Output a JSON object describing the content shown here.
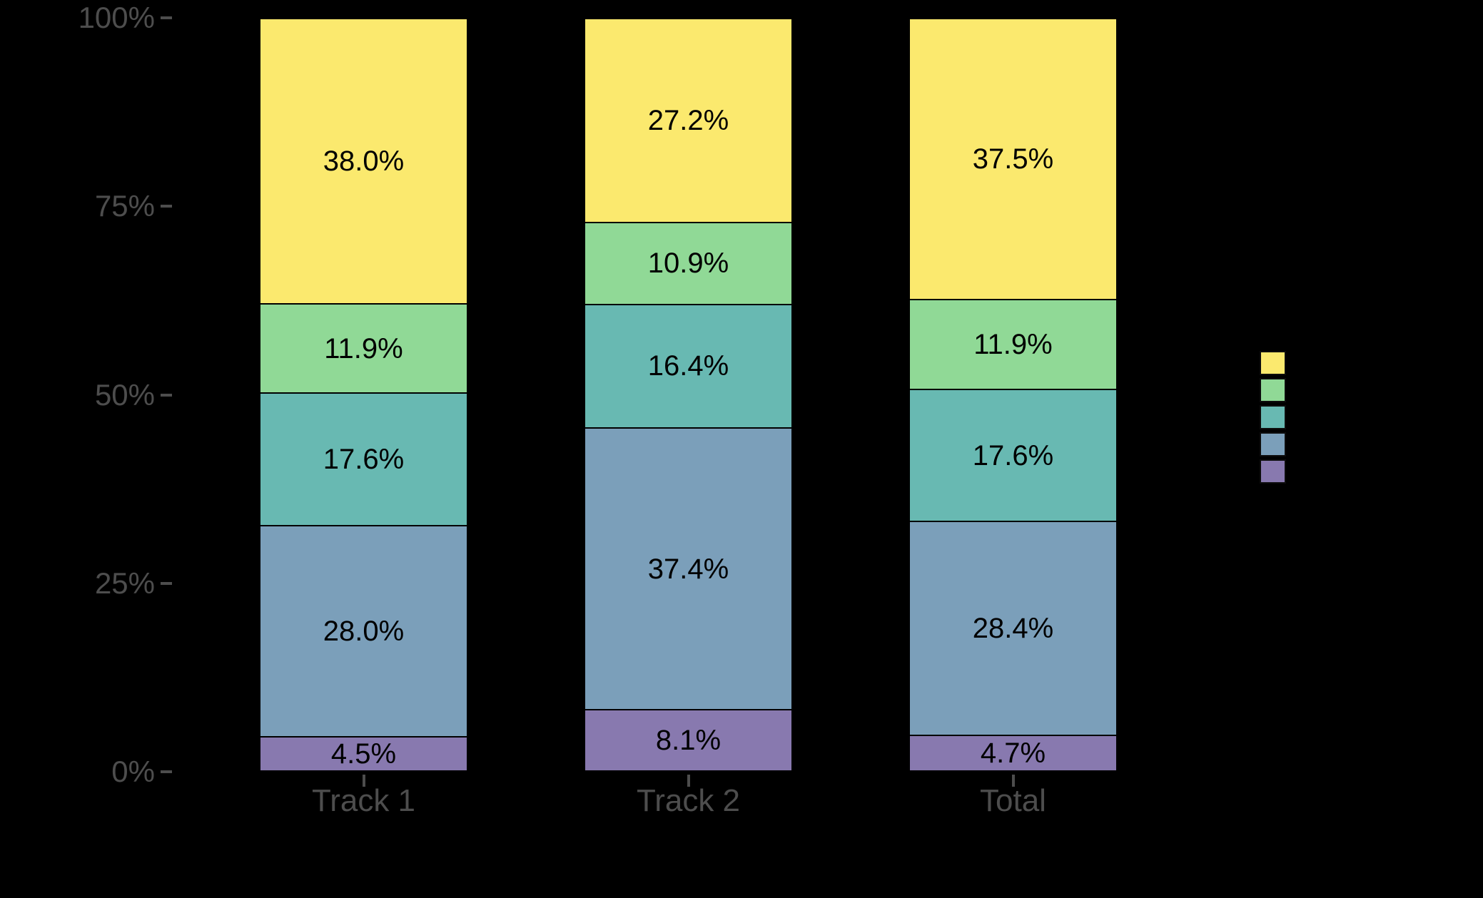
{
  "canvas": {
    "background": "#000000"
  },
  "chart_data": {
    "type": "bar",
    "variant": "stacked-percent",
    "orientation": "vertical",
    "grid": false,
    "legend_position": "right",
    "categories": [
      "Track 1",
      "Track 2",
      "Total"
    ],
    "series": [
      {
        "key": "yellow",
        "color": "#FBE96E",
        "values": [
          38.0,
          27.2,
          37.5
        ],
        "labels": [
          "38.0%",
          "27.2%",
          "37.5%"
        ]
      },
      {
        "key": "green",
        "color": "#90D996",
        "values": [
          11.9,
          10.9,
          11.9
        ],
        "labels": [
          "11.9%",
          "10.9%",
          "11.9%"
        ]
      },
      {
        "key": "teal",
        "color": "#68B9B2",
        "values": [
          17.6,
          16.4,
          17.6
        ],
        "labels": [
          "17.6%",
          "16.4%",
          "17.6%"
        ]
      },
      {
        "key": "blue",
        "color": "#7B9FBA",
        "values": [
          28.0,
          37.4,
          28.4
        ],
        "labels": [
          "28.0%",
          "37.4%",
          "28.4%"
        ]
      },
      {
        "key": "purple",
        "color": "#8879AF",
        "values": [
          4.5,
          8.1,
          4.7
        ],
        "labels": [
          "4.5%",
          "8.1%",
          "4.7%"
        ]
      }
    ],
    "y_axis": {
      "ticks": [
        "100%",
        "75%",
        "50%",
        "25%",
        "0%"
      ],
      "range": [
        0,
        100
      ]
    },
    "legend": {
      "swatch_colors": [
        "#FBE96E",
        "#90D996",
        "#68B9B2",
        "#7B9FBA",
        "#8879AF"
      ]
    }
  },
  "styles": {
    "axis_text_color": "#4d4d4d",
    "tick_color": "#4d4d4d",
    "segment_label_color": "#000000",
    "segment_border_color": "#000000"
  }
}
